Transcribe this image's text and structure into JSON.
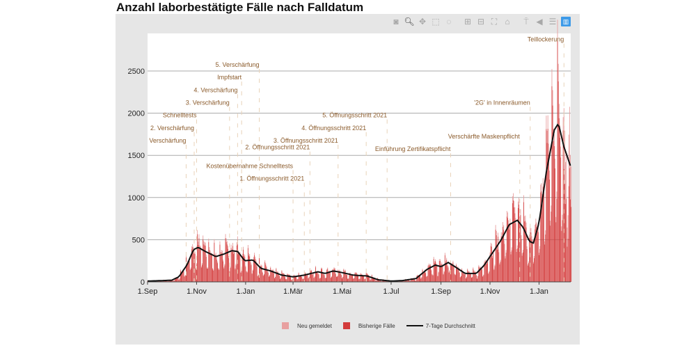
{
  "title": "Anzahl laborbestätigte Fälle nach Falldatum",
  "toolbar": [
    {
      "name": "camera-icon",
      "glyph": "◙"
    },
    {
      "name": "zoom-icon",
      "glyph": "🔍︎",
      "active": true
    },
    {
      "name": "pan-icon",
      "glyph": "✥"
    },
    {
      "name": "box-select-icon",
      "glyph": "⬚"
    },
    {
      "name": "lasso-icon",
      "glyph": "◌"
    },
    {
      "name": "zoom-in-icon",
      "glyph": "⊞"
    },
    {
      "name": "zoom-out-icon",
      "glyph": "⊟"
    },
    {
      "name": "autoscale-icon",
      "glyph": "⛶"
    },
    {
      "name": "home-icon",
      "glyph": "⌂"
    },
    {
      "name": "spike-lines-icon",
      "glyph": "⍑"
    },
    {
      "name": "hover-closest-icon",
      "glyph": "◀"
    },
    {
      "name": "hover-compare-icon",
      "glyph": "☰"
    },
    {
      "name": "plotly-logo-icon",
      "glyph": "▥"
    }
  ],
  "chart_data": {
    "type": "bar",
    "title": "Anzahl laborbestätigte Fälle nach Falldatum",
    "xlabel": "",
    "ylabel": "",
    "x_range": [
      "2020-09-01",
      "2022-02-12"
    ],
    "ylim": [
      0,
      2800
    ],
    "grid": true,
    "legend_placement": "bottom",
    "y_ticks": [
      0,
      500,
      1000,
      1500,
      2000,
      2500
    ],
    "x_ticks": [
      {
        "date": "2020-09-01",
        "label": "1.Sep"
      },
      {
        "date": "2020-11-01",
        "label": "1.Nov"
      },
      {
        "date": "2021-01-01",
        "label": "1.Jan"
      },
      {
        "date": "2021-03-01",
        "label": "1.Mär"
      },
      {
        "date": "2021-05-01",
        "label": "1.Mai"
      },
      {
        "date": "2021-07-01",
        "label": "1.Jul"
      },
      {
        "date": "2021-09-01",
        "label": "1.Sep"
      },
      {
        "date": "2021-11-01",
        "label": "1.Nov"
      },
      {
        "date": "2022-01-01",
        "label": "1.Jan"
      }
    ],
    "legend": [
      {
        "label": "Neu gemeldet",
        "color": "#e8a0a0",
        "kind": "box"
      },
      {
        "label": "Bisherige Fälle",
        "color": "#d33b3b",
        "kind": "box"
      },
      {
        "label": "7-Tage Durchschnitt",
        "color": "#111111",
        "kind": "line"
      }
    ],
    "weekday_factors": [
      1.45,
      1.3,
      1.2,
      1.1,
      0.95,
      0.45,
      0.55
    ],
    "avg_7d": [
      [
        "2020-09-01",
        10
      ],
      [
        "2020-09-20",
        15
      ],
      [
        "2020-10-01",
        20
      ],
      [
        "2020-10-10",
        60
      ],
      [
        "2020-10-20",
        200
      ],
      [
        "2020-10-28",
        380
      ],
      [
        "2020-11-03",
        410
      ],
      [
        "2020-11-12",
        360
      ],
      [
        "2020-11-25",
        300
      ],
      [
        "2020-12-05",
        330
      ],
      [
        "2020-12-15",
        370
      ],
      [
        "2020-12-22",
        360
      ],
      [
        "2020-12-31",
        250
      ],
      [
        "2021-01-10",
        260
      ],
      [
        "2021-01-20",
        160
      ],
      [
        "2021-02-01",
        130
      ],
      [
        "2021-02-15",
        80
      ],
      [
        "2021-03-01",
        60
      ],
      [
        "2021-03-15",
        80
      ],
      [
        "2021-04-01",
        120
      ],
      [
        "2021-04-10",
        100
      ],
      [
        "2021-04-20",
        130
      ],
      [
        "2021-05-01",
        110
      ],
      [
        "2021-05-15",
        80
      ],
      [
        "2021-06-01",
        70
      ],
      [
        "2021-06-15",
        25
      ],
      [
        "2021-07-01",
        10
      ],
      [
        "2021-07-15",
        15
      ],
      [
        "2021-08-01",
        40
      ],
      [
        "2021-08-15",
        150
      ],
      [
        "2021-08-25",
        200
      ],
      [
        "2021-09-01",
        180
      ],
      [
        "2021-09-10",
        230
      ],
      [
        "2021-09-20",
        170
      ],
      [
        "2021-10-01",
        100
      ],
      [
        "2021-10-15",
        100
      ],
      [
        "2021-10-25",
        200
      ],
      [
        "2021-11-01",
        300
      ],
      [
        "2021-11-15",
        500
      ],
      [
        "2021-11-25",
        680
      ],
      [
        "2021-12-05",
        730
      ],
      [
        "2021-12-12",
        650
      ],
      [
        "2021-12-20",
        480
      ],
      [
        "2021-12-25",
        460
      ],
      [
        "2022-01-01",
        700
      ],
      [
        "2022-01-10",
        1300
      ],
      [
        "2022-01-20",
        1800
      ],
      [
        "2022-01-25",
        1880
      ],
      [
        "2022-02-01",
        1600
      ],
      [
        "2022-02-10",
        1350
      ]
    ],
    "annotations": [
      {
        "date": "2020-10-19",
        "label": "Verschärfung",
        "label_y": 1650
      },
      {
        "date": "2020-10-29",
        "label": "2. Verschärfung",
        "label_y": 1800
      },
      {
        "date": "2020-11-01",
        "label": "Schnelltests",
        "label_y": 1950
      },
      {
        "date": "2020-12-12",
        "label": "3. Verschärfung",
        "label_y": 2100
      },
      {
        "date": "2020-12-22",
        "label": "4. Verschärfung",
        "label_y": 2250
      },
      {
        "date": "2020-12-27",
        "label": "Impfstart",
        "label_y": 2400
      },
      {
        "date": "2021-01-18",
        "label": "5. Verschärfung",
        "label_y": 2550
      },
      {
        "date": "2021-03-01",
        "label": "Kostenübernahme Schnelltests",
        "label_y": 1350
      },
      {
        "date": "2021-03-15",
        "label": "1. Öffnungsschritt 2021",
        "label_y": 1200
      },
      {
        "date": "2021-03-22",
        "label": "2. Öffnungsschritt 2021",
        "label_y": 1570
      },
      {
        "date": "2021-04-26",
        "label": "3. Öffnungsschritt 2021",
        "label_y": 1650
      },
      {
        "date": "2021-05-31",
        "label": "4. Öffnungsschritt 2021",
        "label_y": 1800
      },
      {
        "date": "2021-06-26",
        "label": "5. Öffnungsschritt 2021",
        "label_y": 1950
      },
      {
        "date": "2021-09-13",
        "label": "Einführung Zertifikatspflicht",
        "label_y": 1550
      },
      {
        "date": "2021-12-08",
        "label": "Verschärfte Maskenpflicht",
        "label_y": 1700
      },
      {
        "date": "2021-12-21",
        "label": "'2G' in Innenräumen",
        "label_y": 2100
      },
      {
        "date": "2022-02-01",
        "label": "Teillockerung",
        "label_y": 2850
      }
    ]
  }
}
